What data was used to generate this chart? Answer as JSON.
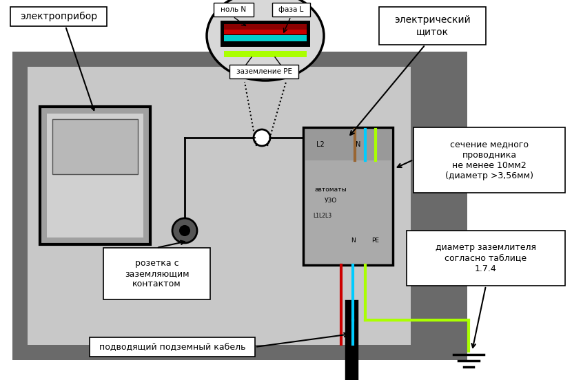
{
  "bg_outer": "#ffffff",
  "bg_wall": "#6a6a6a",
  "bg_room": "#c8c8c8",
  "bg_right_wall": "#6a6a6a",
  "labels": {
    "electrodevice": "электроприбор",
    "electric_panel": "электрический\nщиток",
    "socket": "розетка с\nзаземляющим\nконтактом",
    "cable": "подводящий подземный кабель",
    "conductor": "сечение медного\nпроводника\nне менее 10мм2\n(диаметр >3,56мм)",
    "grounding_diameter": "диаметр заземлителя\nсогласно таблице\n1.7.4",
    "null_n": "ноль N",
    "phase_l": "фаза L",
    "zazemlenie_pe": "заземление PE",
    "avtomaty": "автоматы",
    "uzo": "УЗО",
    "l1l2l3": "L1L2L3",
    "l2": "L2",
    "n_top": "N",
    "n_bot": "N",
    "pe": "PE"
  },
  "colors": {
    "black": "#000000",
    "dark_gray": "#555555",
    "mid_gray": "#888888",
    "light_gray": "#c8c8c8",
    "white": "#ffffff",
    "red": "#cc0000",
    "cyan": "#00ccff",
    "yellow_green": "#aaff00",
    "brown": "#996633",
    "dark_red": "#8b0000",
    "panel_gray": "#b0b0b0",
    "appliance_dark": "#a0a0a0",
    "appliance_light": "#d0d0d0"
  }
}
